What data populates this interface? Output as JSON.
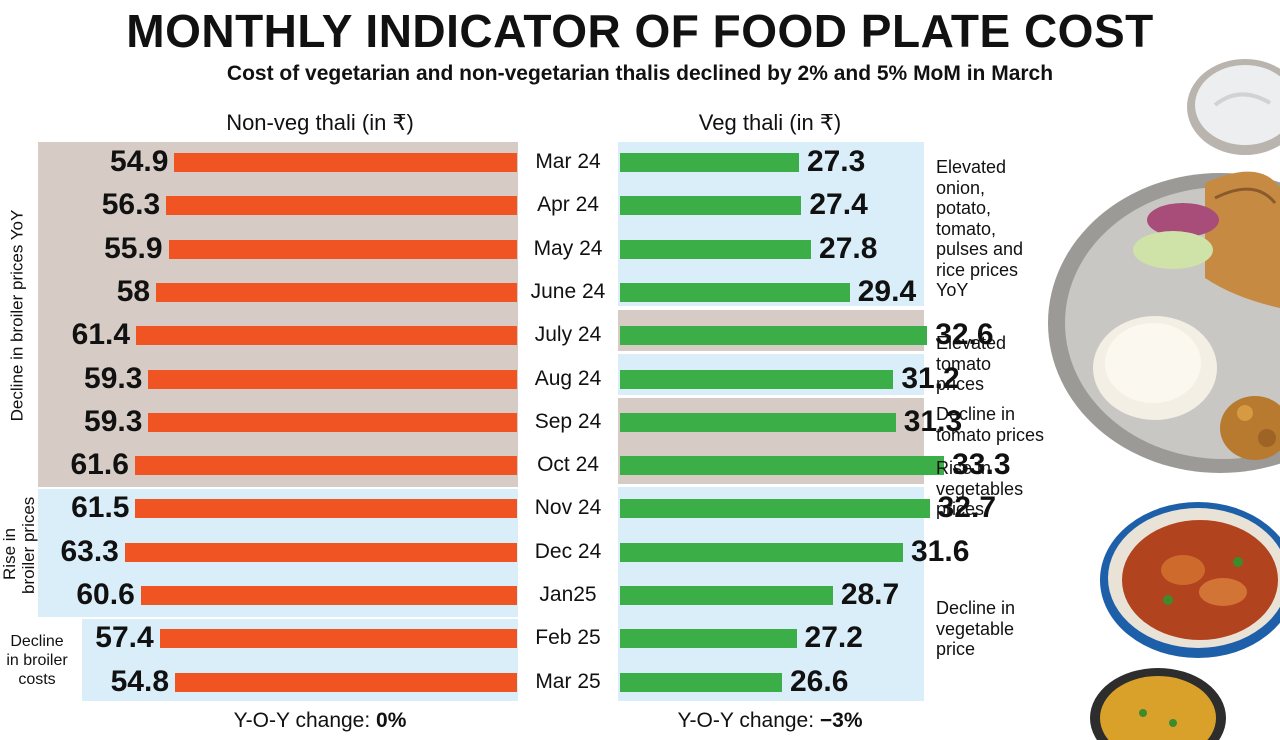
{
  "title": "MONTHLY INDICATOR OF FOOD PLATE COST",
  "subtitle": "Cost of vegetarian and non-vegetarian thalis declined by 2% and 5% MoM in March",
  "colors": {
    "nonveg_bar": "#f05423",
    "veg_bar": "#3cae48",
    "band_brown": "#d6cbc5",
    "band_blue": "#d9eef9"
  },
  "chart_data": [
    {
      "type": "bar",
      "orientation": "horizontal",
      "title": "Non-veg thali (in ₹)",
      "categories": [
        "Mar 24",
        "Apr 24",
        "May 24",
        "June 24",
        "July 24",
        "Aug 24",
        "Sep 24",
        "Oct 24",
        "Nov 24",
        "Dec 24",
        "Jan25",
        "Feb 25",
        "Mar 25"
      ],
      "values": [
        54.9,
        56.3,
        55.9,
        58,
        61.4,
        59.3,
        59.3,
        61.6,
        61.5,
        63.3,
        60.6,
        57.4,
        54.8
      ],
      "value_labels": [
        "54.9",
        "56.3",
        "55.9",
        "58",
        "61.4",
        "59.3",
        "59.3",
        "61.6",
        "61.5",
        "63.3",
        "60.6",
        "57.4",
        "54.8"
      ],
      "xlim": [
        0,
        70
      ],
      "footer_label": "Y-O-Y change: ",
      "footer_value": "0%",
      "annotations": [
        {
          "text": "Decline in broiler prices YoY",
          "months": "Mar 24 – Oct 24"
        },
        {
          "text": "Rise in broiler prices",
          "months": "Nov 24 – Jan25"
        },
        {
          "text": "Decline in broiler costs",
          "months": "Feb 25 – Mar 25"
        }
      ]
    },
    {
      "type": "bar",
      "orientation": "horizontal",
      "title": "Veg thali (in ₹)",
      "categories": [
        "Mar 24",
        "Apr 24",
        "May 24",
        "June 24",
        "July 24",
        "Aug 24",
        "Sep 24",
        "Oct 24",
        "Nov 24",
        "Dec 24",
        "Jan25",
        "Feb 25",
        "Mar 25"
      ],
      "values": [
        27.3,
        27.4,
        27.8,
        29.4,
        32.6,
        31.2,
        31.3,
        33.3,
        32.7,
        31.6,
        28.7,
        27.2,
        26.6
      ],
      "value_labels": [
        "27.3",
        "27.4",
        "27.8",
        "29.4",
        "32.6",
        "31.2",
        "31.3",
        "33.3",
        "32.7",
        "31.6",
        "28.7",
        "27.2",
        "26.6"
      ],
      "xlim": [
        0,
        40
      ],
      "footer_label": "Y-O-Y change: ",
      "footer_value": "−3%",
      "annotations": [
        {
          "text": "Elevated onion, potato, tomato, pulses and rice prices YoY",
          "months": "Mar 24 – June 24"
        },
        {
          "text": "Elevated tomato prices",
          "months": "July 24 – Aug 24"
        },
        {
          "text": "Decline in tomato prices",
          "months": "Sep 24 – Oct 24"
        },
        {
          "text": "Rise in vegetables prices",
          "months": "Nov 24"
        },
        {
          "text": "Decline in vegetable price",
          "months": "Dec 24 – Mar 25"
        }
      ]
    }
  ],
  "nonveg_notes": {
    "broiler_yoy": "Decline in broiler prices YoY",
    "rise_line1": "Rise in",
    "rise_line2": "broiler prices",
    "decline_line1": "Decline",
    "decline_line2": "in broiler",
    "decline_line3": "costs"
  },
  "veg_notes": {
    "n1_line1": "Elevated",
    "n1_line2": "onion,",
    "n1_line3": "potato,",
    "n1_line4": "tomato,",
    "n1_line5": "pulses and",
    "n1_line6": "rice prices",
    "n1_line7": "YoY",
    "n2_line1": "Elevated",
    "n2_line2": "tomato",
    "n2_line3": "prices",
    "n3_line1": "Decline in",
    "n3_line2": "tomato prices",
    "n4_line1": "Rise in",
    "n4_line2": "vegetables",
    "n4_line3": "prices",
    "n5_line1": "Decline in",
    "n5_line2": "vegetable",
    "n5_line3": "price"
  },
  "icons": [
    "curd-bowl-icon",
    "thali-plate-icon",
    "curry-bowl-icon",
    "dal-bowl-icon"
  ]
}
